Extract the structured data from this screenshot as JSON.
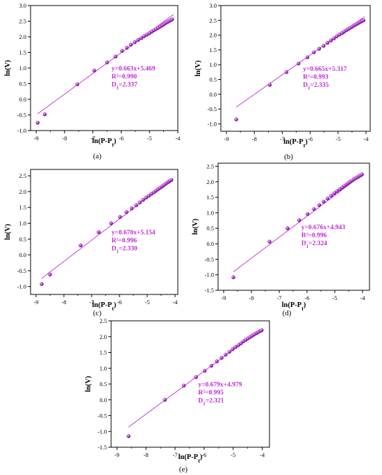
{
  "chart_data": [
    {
      "type": "scatter",
      "panel_label": "(a)",
      "xlabel": "ln(P-P_t)",
      "ylabel": "ln(V)",
      "xlim": [
        -9.2,
        -4.0
      ],
      "ylim": [
        -1.0,
        3.0
      ],
      "xticks": [
        "-9",
        "-8",
        "-7",
        "-6",
        "-5",
        "-4"
      ],
      "xtick_values": [
        -9,
        -8,
        -7,
        -6,
        -5,
        -4
      ],
      "yticks": [
        "-1.0",
        "-0.5",
        "0.0",
        "0.5",
        "1.0",
        "1.5",
        "2.0",
        "2.5",
        "3.0"
      ],
      "ytick_values": [
        -1.0,
        -0.5,
        0.0,
        0.5,
        1.0,
        1.5,
        2.0,
        2.5,
        3.0
      ],
      "fit": {
        "slope": 0.663,
        "intercept": 5.469,
        "x_range": [
          -8.95,
          -4.15
        ]
      },
      "annotation": [
        "y=0.663x+5.469",
        "R²=0.990",
        "D_1=2.337"
      ],
      "x": [
        -8.95,
        -8.7,
        -7.55,
        -6.95,
        -6.5,
        -6.2,
        -5.97,
        -5.8,
        -5.66,
        -5.52,
        -5.4,
        -5.29,
        -5.19,
        -5.09,
        -5.0,
        -4.92,
        -4.84,
        -4.76,
        -4.69,
        -4.62,
        -4.55,
        -4.49,
        -4.43,
        -4.37,
        -4.31,
        -4.26,
        -4.2
      ],
      "y": [
        -0.75,
        -0.48,
        0.48,
        0.92,
        1.18,
        1.37,
        1.55,
        1.65,
        1.75,
        1.83,
        1.9,
        1.96,
        2.02,
        2.07,
        2.12,
        2.17,
        2.21,
        2.25,
        2.29,
        2.33,
        2.37,
        2.4,
        2.44,
        2.47,
        2.5,
        2.53,
        2.56
      ],
      "colors": {
        "series": "#c02ad8",
        "line": "#c02ad8",
        "text": "#c02ad8"
      }
    },
    {
      "type": "scatter",
      "panel_label": "(b)",
      "xlabel": "ln(P-P_t)",
      "ylabel": "ln(V)",
      "xlim": [
        -9.2,
        -3.85
      ],
      "ylim": [
        -1.25,
        3.0
      ],
      "xticks": [
        "-9",
        "-8",
        "-7",
        "-6",
        "-5",
        "-4"
      ],
      "xtick_values": [
        -9,
        -8,
        -7,
        -6,
        -5,
        -4
      ],
      "yticks": [
        "-1.0",
        "-0.5",
        "0.0",
        "0.5",
        "1.0",
        "1.5",
        "2.0",
        "2.5",
        "3.0"
      ],
      "ytick_values": [
        -1.0,
        -0.5,
        0.0,
        0.5,
        1.0,
        1.5,
        2.0,
        2.5,
        3.0
      ],
      "fit": {
        "slope": 0.665,
        "intercept": 5.317,
        "x_range": [
          -8.65,
          -4.05
        ]
      },
      "annotation": [
        "y=0.665x+5.317",
        "R²=0.993",
        "D_1=2.335"
      ],
      "x": [
        -8.65,
        -7.45,
        -6.85,
        -6.42,
        -6.1,
        -5.87,
        -5.68,
        -5.52,
        -5.38,
        -5.26,
        -5.15,
        -5.05,
        -4.95,
        -4.86,
        -4.78,
        -4.7,
        -4.63,
        -4.56,
        -4.49,
        -4.43,
        -4.37,
        -4.31,
        -4.25,
        -4.2,
        -4.14,
        -4.09
      ],
      "y": [
        -0.85,
        0.32,
        0.75,
        1.04,
        1.25,
        1.42,
        1.54,
        1.64,
        1.74,
        1.82,
        1.89,
        1.96,
        2.02,
        2.07,
        2.12,
        2.17,
        2.21,
        2.25,
        2.29,
        2.33,
        2.36,
        2.39,
        2.42,
        2.45,
        2.48,
        2.5
      ],
      "colors": {
        "series": "#c02ad8",
        "line": "#c02ad8",
        "text": "#c02ad8"
      }
    },
    {
      "type": "scatter",
      "panel_label": "(c)",
      "xlabel": "ln(P-P_t)",
      "ylabel": "ln(V)",
      "xlim": [
        -9.2,
        -3.9
      ],
      "ylim": [
        -1.25,
        2.7
      ],
      "xticks": [
        "-9",
        "-8",
        "-7",
        "-6",
        "-5",
        "-4"
      ],
      "xtick_values": [
        -9,
        -8,
        -7,
        -6,
        -5,
        -4
      ],
      "yticks": [
        "-1.0",
        "-0.5",
        "0.0",
        "0.5",
        "1.0",
        "1.5",
        "2.0",
        "2.5"
      ],
      "ytick_values": [
        -1.0,
        -0.5,
        0.0,
        0.5,
        1.0,
        1.5,
        2.0,
        2.5
      ],
      "fit": {
        "slope": 0.67,
        "intercept": 5.154,
        "x_range": [
          -8.8,
          -4.1
        ]
      },
      "annotation": [
        "y=0.670x+5.154",
        "R²=0.996",
        "D_1=2.330"
      ],
      "x": [
        -8.8,
        -8.5,
        -7.4,
        -6.75,
        -6.3,
        -5.98,
        -5.75,
        -5.56,
        -5.4,
        -5.27,
        -5.15,
        -5.04,
        -4.94,
        -4.85,
        -4.76,
        -4.68,
        -4.61,
        -4.54,
        -4.47,
        -4.41,
        -4.35,
        -4.29,
        -4.23,
        -4.18,
        -4.13
      ],
      "y": [
        -0.92,
        -0.62,
        0.3,
        0.72,
        1.0,
        1.2,
        1.35,
        1.47,
        1.57,
        1.66,
        1.74,
        1.81,
        1.87,
        1.93,
        1.98,
        2.03,
        2.08,
        2.12,
        2.16,
        2.2,
        2.24,
        2.28,
        2.31,
        2.34,
        2.37
      ],
      "colors": {
        "series": "#c02ad8",
        "line": "#c02ad8",
        "text": "#c02ad8"
      }
    },
    {
      "type": "scatter",
      "panel_label": "(d)",
      "xlabel": "ln(P-P_t)",
      "ylabel": "ln(V)",
      "xlim": [
        -9.2,
        -3.75
      ],
      "ylim": [
        -1.5,
        2.6
      ],
      "xticks": [
        "-9",
        "-8",
        "-7",
        "-6",
        "-5",
        "-4"
      ],
      "xtick_values": [
        -9,
        -8,
        -7,
        -6,
        -5,
        -4
      ],
      "yticks": [
        "-1.5",
        "-1.0",
        "-0.5",
        "0.0",
        "0.5",
        "1.0",
        "1.5",
        "2.0",
        "2.5"
      ],
      "ytick_values": [
        -1.5,
        -1.0,
        -0.5,
        0.0,
        0.5,
        1.0,
        1.5,
        2.0,
        2.5
      ],
      "fit": {
        "slope": 0.676,
        "intercept": 4.943,
        "x_range": [
          -8.65,
          -4.0
        ]
      },
      "annotation": [
        "y=0.676x+4.943",
        "R²=0.996",
        "D_1=2.324"
      ],
      "x": [
        -8.65,
        -7.35,
        -6.7,
        -6.28,
        -5.98,
        -5.75,
        -5.56,
        -5.4,
        -5.26,
        -5.13,
        -5.02,
        -4.92,
        -4.82,
        -4.73,
        -4.65,
        -4.57,
        -4.5,
        -4.43,
        -4.36,
        -4.3,
        -4.24,
        -4.18,
        -4.13,
        -4.07,
        -4.02
      ],
      "y": [
        -1.08,
        0.07,
        0.5,
        0.76,
        0.96,
        1.12,
        1.25,
        1.36,
        1.46,
        1.55,
        1.63,
        1.7,
        1.76,
        1.82,
        1.87,
        1.92,
        1.97,
        2.01,
        2.05,
        2.09,
        2.12,
        2.15,
        2.18,
        2.21,
        2.24
      ],
      "colors": {
        "series": "#c02ad8",
        "line": "#c02ad8",
        "text": "#c02ad8"
      }
    },
    {
      "type": "scatter",
      "panel_label": "(e)",
      "xlabel": "ln(P-P_t)",
      "ylabel": "ln(V)",
      "xlim": [
        -9.2,
        -3.75
      ],
      "ylim": [
        -1.5,
        2.5
      ],
      "xticks": [
        "-9",
        "-8",
        "-7",
        "-6",
        "-5",
        "-4"
      ],
      "xtick_values": [
        -9,
        -8,
        -7,
        -6,
        -5,
        -4
      ],
      "yticks": [
        "-1.5",
        "-1.0",
        "-0.5",
        "0.0",
        "0.5",
        "1.0",
        "1.5",
        "2.0",
        "2.5"
      ],
      "ytick_values": [
        -1.5,
        -1.0,
        -0.5,
        0.0,
        0.5,
        1.0,
        1.5,
        2.0,
        2.5
      ],
      "fit": {
        "slope": 0.679,
        "intercept": 4.979,
        "x_range": [
          -8.6,
          -4.0
        ]
      },
      "annotation": [
        "y=0.679x+4.979",
        "R²=0.995",
        "D_1=2.321"
      ],
      "x": [
        -8.6,
        -7.35,
        -6.7,
        -6.28,
        -5.98,
        -5.75,
        -5.56,
        -5.4,
        -5.26,
        -5.13,
        -5.02,
        -4.92,
        -4.82,
        -4.73,
        -4.65,
        -4.57,
        -4.5,
        -4.43,
        -4.36,
        -4.3,
        -4.24,
        -4.18,
        -4.13,
        -4.07,
        -4.02
      ],
      "y": [
        -1.15,
        0.0,
        0.45,
        0.72,
        0.92,
        1.08,
        1.22,
        1.33,
        1.43,
        1.52,
        1.6,
        1.67,
        1.73,
        1.79,
        1.85,
        1.9,
        1.94,
        1.98,
        2.02,
        2.06,
        2.09,
        2.12,
        2.15,
        2.18,
        2.2
      ],
      "colors": {
        "series": "#c02ad8",
        "line": "#c02ad8",
        "text": "#c02ad8"
      }
    }
  ]
}
